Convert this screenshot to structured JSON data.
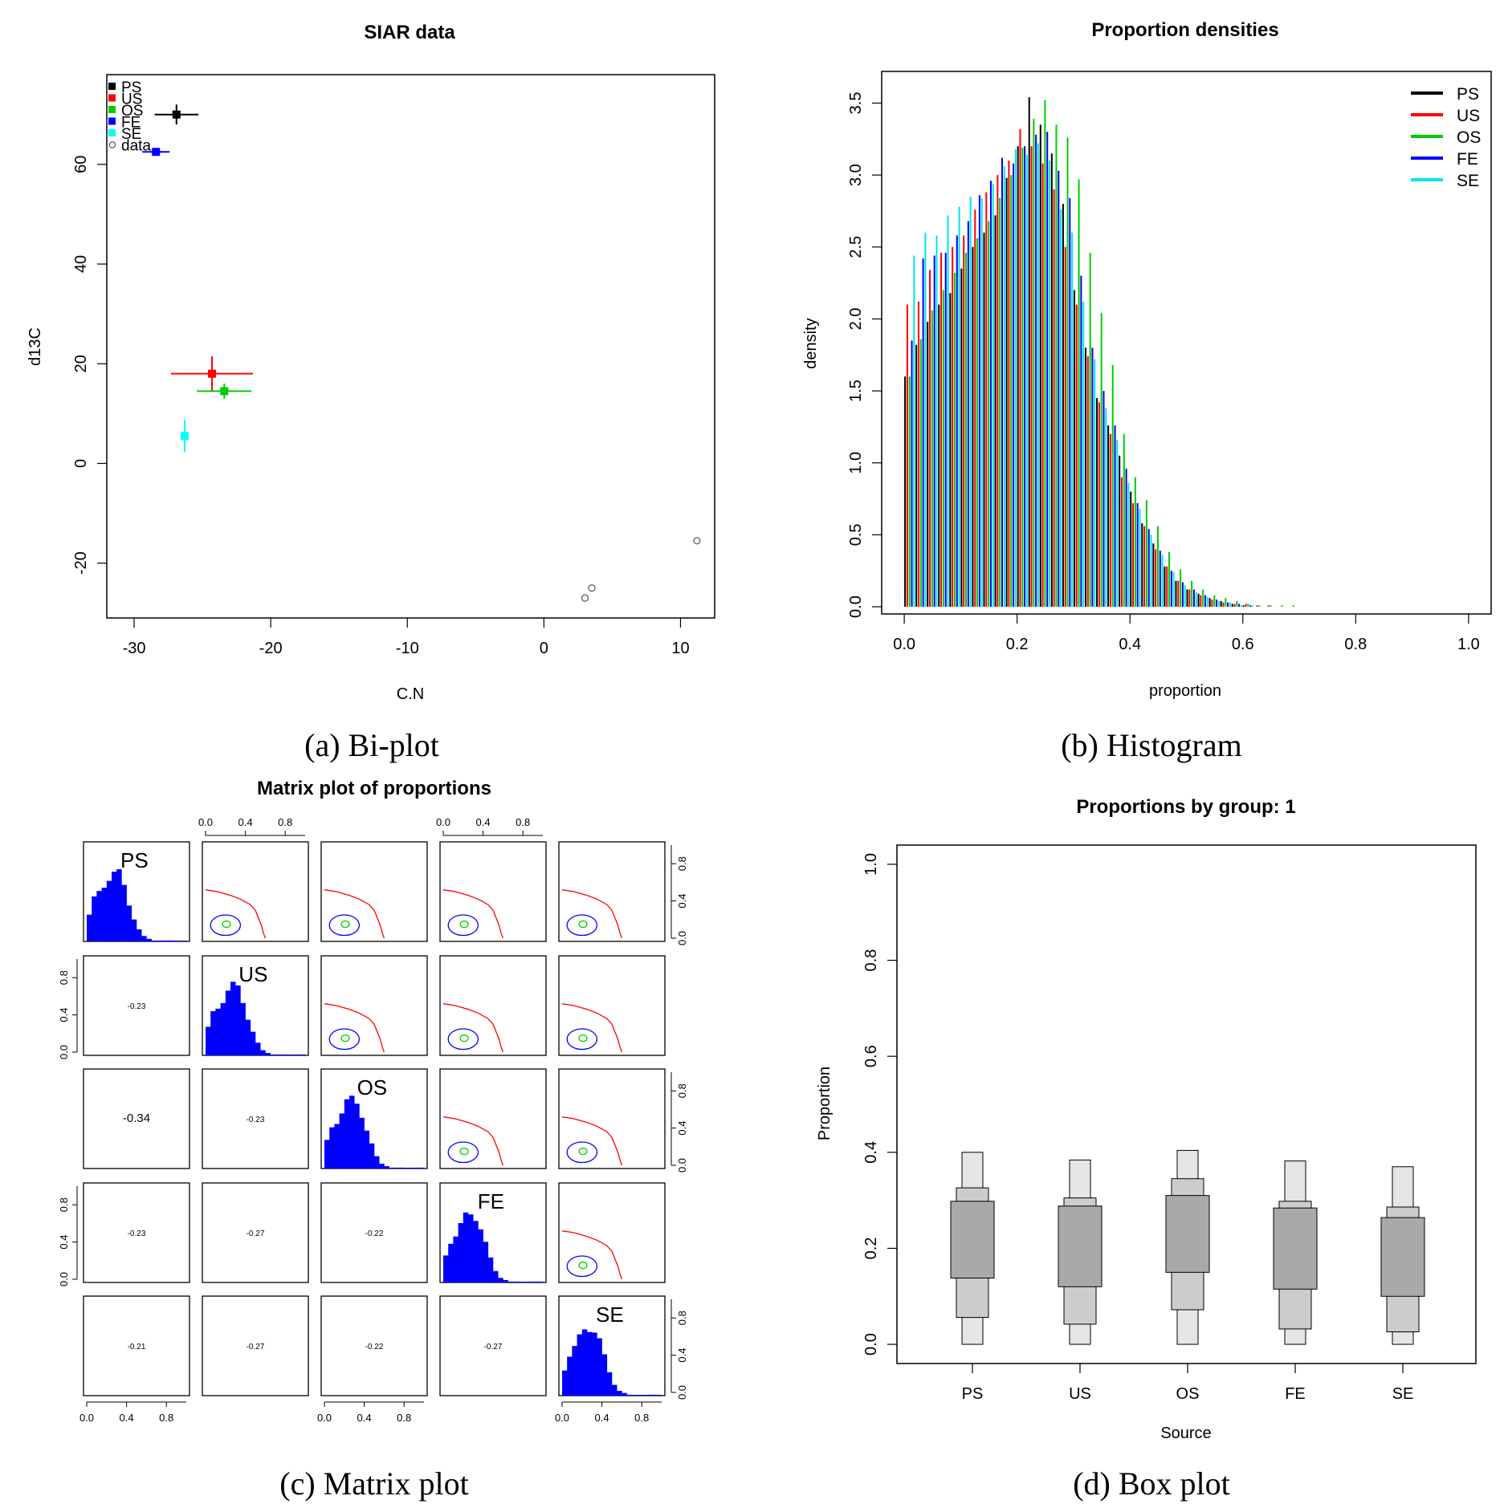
{
  "chart_data": [
    {
      "type": "scatter",
      "title": "SIAR data",
      "xlabel": "C.N",
      "ylabel": "d13C",
      "caption": "(a) Bi-plot",
      "xlim": [
        -32,
        12.5
      ],
      "ylim": [
        -31,
        78
      ],
      "xticks": [
        -30,
        -20,
        -10,
        0,
        10
      ],
      "yticks": [
        -20,
        0,
        20,
        40,
        60
      ],
      "xtick_labels": [
        "-30",
        "-20",
        "-10",
        "0",
        "10"
      ],
      "ytick_labels": [
        "-20",
        "0",
        "20",
        "40",
        "60"
      ],
      "legend": [
        {
          "name": "PS",
          "color": "#000000",
          "marker": "square"
        },
        {
          "name": "US",
          "color": "#ff0000",
          "marker": "square"
        },
        {
          "name": "OS",
          "color": "#00cc00",
          "marker": "square"
        },
        {
          "name": "FE",
          "color": "#0000ff",
          "marker": "square"
        },
        {
          "name": "SE",
          "color": "#00ffff",
          "marker": "square"
        },
        {
          "name": "data",
          "color": "#555555",
          "marker": "circle"
        }
      ],
      "sources": [
        {
          "name": "PS",
          "x": -26.9,
          "y": 70,
          "xerr": 1.6,
          "yerr": 2,
          "color": "#000000"
        },
        {
          "name": "US",
          "x": -24.3,
          "y": 18,
          "xerr": 3,
          "yerr": 3.5,
          "color": "#ff0000"
        },
        {
          "name": "OS",
          "x": -23.4,
          "y": 14.5,
          "xerr": 2,
          "yerr": 1.5,
          "color": "#00cc00"
        },
        {
          "name": "FE",
          "x": -28.4,
          "y": 62.5,
          "xerr": 1,
          "yerr": 0.5,
          "color": "#0000ff"
        },
        {
          "name": "SE",
          "x": -26.3,
          "y": 5.5,
          "xerr": 0.1,
          "yerr": 3.2,
          "color": "#00ffff"
        }
      ],
      "data_points": [
        {
          "x": 3.0,
          "y": -27
        },
        {
          "x": 3.5,
          "y": -25
        },
        {
          "x": 11.2,
          "y": -15.5
        }
      ]
    },
    {
      "type": "bar",
      "title": "Proportion densities",
      "xlabel": "proportion",
      "ylabel": "density",
      "caption": "(b) Histogram",
      "xlim": [
        -0.04,
        1.04
      ],
      "ylim": [
        -0.05,
        3.72
      ],
      "xticks": [
        0,
        0.2,
        0.4,
        0.6,
        0.8,
        1.0
      ],
      "yticks": [
        0,
        0.5,
        1,
        1.5,
        2,
        2.5,
        3,
        3.5
      ],
      "xtick_labels": [
        "0.0",
        "0.2",
        "0.4",
        "0.6",
        "0.8",
        "1.0"
      ],
      "ytick_labels": [
        "0.0",
        "0.5",
        "1.0",
        "1.5",
        "2.0",
        "2.5",
        "3.0",
        "3.5"
      ],
      "bin_width": 0.02,
      "bins": [
        0.0,
        0.02,
        0.04,
        0.06,
        0.08,
        0.1,
        0.12,
        0.14,
        0.16,
        0.18,
        0.2,
        0.22,
        0.24,
        0.26,
        0.28,
        0.3,
        0.32,
        0.34,
        0.36,
        0.38,
        0.4,
        0.42,
        0.44,
        0.46,
        0.48,
        0.5,
        0.52,
        0.54,
        0.56,
        0.58,
        0.6,
        0.62,
        0.64,
        0.66,
        0.68
      ],
      "series": [
        {
          "name": "PS",
          "color": "#000000",
          "values": [
            1.6,
            1.82,
            1.98,
            2.1,
            2.18,
            2.35,
            2.5,
            2.6,
            2.72,
            2.98,
            3.2,
            3.54,
            3.35,
            3.15,
            2.8,
            2.2,
            1.8,
            1.45,
            1.26,
            1.05,
            0.8,
            0.58,
            0.44,
            0.28,
            0.18,
            0.12,
            0.09,
            0.06,
            0.04,
            0.02,
            0.01,
            0,
            0,
            0,
            0
          ]
        },
        {
          "name": "US",
          "color": "#ff0000",
          "values": [
            2.1,
            2.12,
            2.34,
            2.46,
            2.5,
            2.58,
            2.76,
            2.88,
            3.0,
            3.1,
            3.32,
            3.2,
            3.08,
            2.9,
            2.5,
            2.1,
            1.74,
            1.42,
            1.2,
            0.9,
            0.72,
            0.56,
            0.4,
            0.28,
            0.18,
            0.12,
            0.08,
            0.05,
            0.03,
            0.02,
            0.02,
            0.01,
            0.01,
            0,
            0
          ]
        },
        {
          "name": "OS",
          "color": "#00cc00",
          "values": [
            1.6,
            1.86,
            2.06,
            2.2,
            2.32,
            2.46,
            2.56,
            2.68,
            2.84,
            3.0,
            3.19,
            3.39,
            3.52,
            3.35,
            3.26,
            2.97,
            2.46,
            2.04,
            1.68,
            1.2,
            0.9,
            0.74,
            0.56,
            0.38,
            0.26,
            0.18,
            0.12,
            0.08,
            0.06,
            0.04,
            0.02,
            0.01,
            0.01,
            0.01,
            0.01
          ]
        },
        {
          "name": "FE",
          "color": "#0000ff",
          "values": [
            1.85,
            2.42,
            2.44,
            2.46,
            2.58,
            2.68,
            2.86,
            2.96,
            3.12,
            3.08,
            3.2,
            3.28,
            3.3,
            3.03,
            2.84,
            2.3,
            1.8,
            1.5,
            1.26,
            0.96,
            0.72,
            0.54,
            0.39,
            0.25,
            0.17,
            0.12,
            0.08,
            0.05,
            0.03,
            0.02,
            0.01,
            0,
            0,
            0,
            0
          ]
        },
        {
          "name": "SE",
          "color": "#00e5ee",
          "values": [
            2.44,
            2.6,
            2.58,
            2.72,
            2.78,
            2.85,
            2.84,
            2.94,
            3.06,
            3.18,
            3.14,
            3.22,
            3.1,
            2.76,
            2.6,
            2.12,
            1.72,
            1.38,
            1.16,
            0.86,
            0.68,
            0.5,
            0.36,
            0.24,
            0.15,
            0.1,
            0.07,
            0.04,
            0.03,
            0.01,
            0.01,
            0,
            0,
            0,
            0
          ]
        }
      ]
    },
    {
      "type": "heatmap",
      "title": "Matrix plot of proportions",
      "caption": "(c) Matrix plot",
      "variables": [
        "PS",
        "US",
        "OS",
        "FE",
        "SE"
      ],
      "axis_ticks": [
        0,
        0.4,
        0.8
      ],
      "axis_tick_labels": [
        "0.0",
        "0.4",
        "0.8"
      ],
      "correlations": [
        [
          "",
          "",
          "",
          "",
          ""
        ],
        [
          "-0.23",
          "",
          "",
          "",
          ""
        ],
        [
          "-0.34",
          "-0.23",
          "",
          "",
          ""
        ],
        [
          "-0.23",
          "-0.27",
          "-0.22",
          "",
          ""
        ],
        [
          "-0.21",
          "-0.27",
          "-0.22",
          "-0.27",
          ""
        ]
      ],
      "hist_values": [
        0.32,
        0.5,
        0.58,
        0.68,
        0.78,
        0.82,
        0.8,
        0.66,
        0.46,
        0.28,
        0.14,
        0.06,
        0.03,
        0.01,
        0.01,
        0.01,
        0.01,
        0.01,
        0.01,
        0.01
      ],
      "hist_color": "#0000ff",
      "contour_colors": [
        "#ff0000",
        "#0000ff",
        "#00cc00"
      ]
    },
    {
      "type": "bar",
      "subtype": "boxplot",
      "title": "Proportions by group: 1",
      "xlabel": "Source",
      "ylabel": "Proportion",
      "caption": "(d) Box plot",
      "categories": [
        "PS",
        "US",
        "OS",
        "FE",
        "SE"
      ],
      "ylim": [
        -0.04,
        1.04
      ],
      "yticks": [
        0,
        0.2,
        0.4,
        0.6,
        0.8,
        1.0
      ],
      "ytick_labels": [
        "0.0",
        "0.2",
        "0.4",
        "0.6",
        "0.8",
        "1.0"
      ],
      "boxes": [
        {
          "name": "PS",
          "lo95": 0.0,
          "lo75": 0.056,
          "lo50": 0.138,
          "hi50": 0.298,
          "hi75": 0.326,
          "hi95": 0.4
        },
        {
          "name": "US",
          "lo95": 0.0,
          "lo75": 0.042,
          "lo50": 0.12,
          "hi50": 0.288,
          "hi75": 0.305,
          "hi95": 0.384
        },
        {
          "name": "OS",
          "lo95": 0.0,
          "lo75": 0.072,
          "lo50": 0.15,
          "hi50": 0.31,
          "hi75": 0.345,
          "hi95": 0.404
        },
        {
          "name": "FE",
          "lo95": 0.0,
          "lo75": 0.032,
          "lo50": 0.115,
          "hi50": 0.284,
          "hi75": 0.298,
          "hi95": 0.382
        },
        {
          "name": "SE",
          "lo95": 0.0,
          "lo75": 0.026,
          "lo50": 0.1,
          "hi50": 0.264,
          "hi75": 0.286,
          "hi95": 0.37
        }
      ],
      "colors": {
        "box95": "#e5e5e5",
        "box75": "#cccccc",
        "box50": "#a9a9a9"
      }
    }
  ]
}
